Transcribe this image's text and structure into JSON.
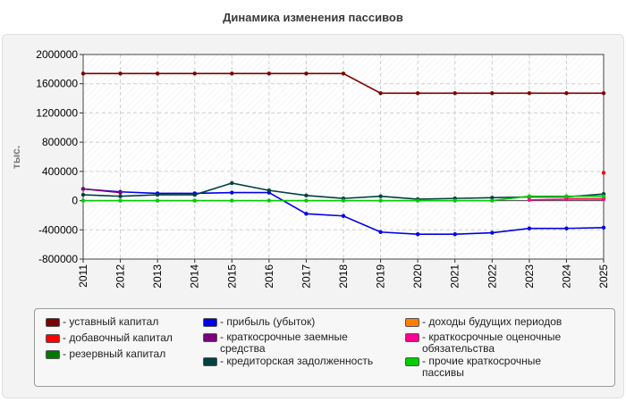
{
  "chart_data": {
    "type": "line",
    "title": "Динамика изменения пассивов",
    "ylabel": "тыс.",
    "xlabel": "",
    "categories": [
      "2011",
      "2012",
      "2013",
      "2014",
      "2015",
      "2016",
      "2017",
      "2018",
      "2019",
      "2020",
      "2021",
      "2022",
      "2023",
      "2024",
      "2025"
    ],
    "ylim": [
      -800000,
      2000000
    ],
    "yticks": [
      -800000,
      -400000,
      0,
      400000,
      800000,
      1200000,
      1600000,
      2000000
    ],
    "grid": true,
    "legend_position": "bottom",
    "series": [
      {
        "name": "- уставный капитал",
        "color": "#7a0000",
        "values": [
          1740000,
          1740000,
          1740000,
          1740000,
          1740000,
          1740000,
          1740000,
          1740000,
          1470000,
          1470000,
          1470000,
          1470000,
          1470000,
          1470000,
          1470000
        ]
      },
      {
        "name": "- добавочный капитал",
        "color": "#ff0000",
        "values": [
          null,
          null,
          null,
          null,
          null,
          null,
          null,
          null,
          null,
          null,
          null,
          null,
          null,
          null,
          380000
        ]
      },
      {
        "name": "- резервный капитал",
        "color": "#007800",
        "values": [
          null,
          null,
          null,
          null,
          null,
          null,
          null,
          null,
          null,
          null,
          null,
          null,
          null,
          null,
          null
        ]
      },
      {
        "name": "- прибыль (убыток)",
        "color": "#0000e6",
        "values": [
          160000,
          120000,
          100000,
          100000,
          110000,
          110000,
          -180000,
          -210000,
          -430000,
          -460000,
          -460000,
          -440000,
          -380000,
          -380000,
          -370000
        ]
      },
      {
        "name": "- краткосрочные заемные средства",
        "color": "#7a007a",
        "values": [
          160000,
          110000,
          null,
          null,
          null,
          null,
          null,
          null,
          null,
          null,
          null,
          null,
          null,
          null,
          null
        ]
      },
      {
        "name": "- кредиторская задолженность",
        "color": "#004040",
        "values": [
          80000,
          60000,
          80000,
          80000,
          240000,
          140000,
          70000,
          30000,
          60000,
          20000,
          30000,
          40000,
          50000,
          50000,
          90000
        ]
      },
      {
        "name": "- доходы будущих периодов",
        "color": "#ff8000",
        "values": [
          null,
          null,
          null,
          null,
          null,
          null,
          null,
          null,
          null,
          null,
          null,
          null,
          null,
          30000,
          30000
        ]
      },
      {
        "name": "- краткосрочные оценочные обязательства",
        "color": "#ff0090",
        "values": [
          null,
          null,
          null,
          null,
          null,
          null,
          null,
          null,
          null,
          null,
          null,
          null,
          10000,
          20000,
          20000
        ]
      },
      {
        "name": "- прочие краткосрочные пассивы",
        "color": "#00cc00",
        "values": [
          0,
          0,
          0,
          0,
          0,
          0,
          0,
          0,
          0,
          0,
          0,
          0,
          60000,
          60000,
          60000
        ]
      }
    ]
  },
  "legend": {
    "items": [
      {
        "lines": [
          "- уставный капитал"
        ],
        "color": "#7a0000"
      },
      {
        "lines": [
          "- добавочный капитал"
        ],
        "color": "#ff0000"
      },
      {
        "lines": [
          "- резервный капитал"
        ],
        "color": "#007800"
      },
      {
        "lines": [
          "- прибыль (убыток)"
        ],
        "color": "#0000e6"
      },
      {
        "lines": [
          "- краткосрочные заемные",
          "средства"
        ],
        "color": "#7a007a"
      },
      {
        "lines": [
          "- кредиторская задолженность"
        ],
        "color": "#004040"
      },
      {
        "lines": [
          "- доходы будущих периодов"
        ],
        "color": "#ff8000"
      },
      {
        "lines": [
          "- краткосрочные оценочные",
          "обязательства"
        ],
        "color": "#ff0090"
      },
      {
        "lines": [
          "- прочие краткосрочные",
          "пассивы"
        ],
        "color": "#00cc00"
      }
    ]
  }
}
